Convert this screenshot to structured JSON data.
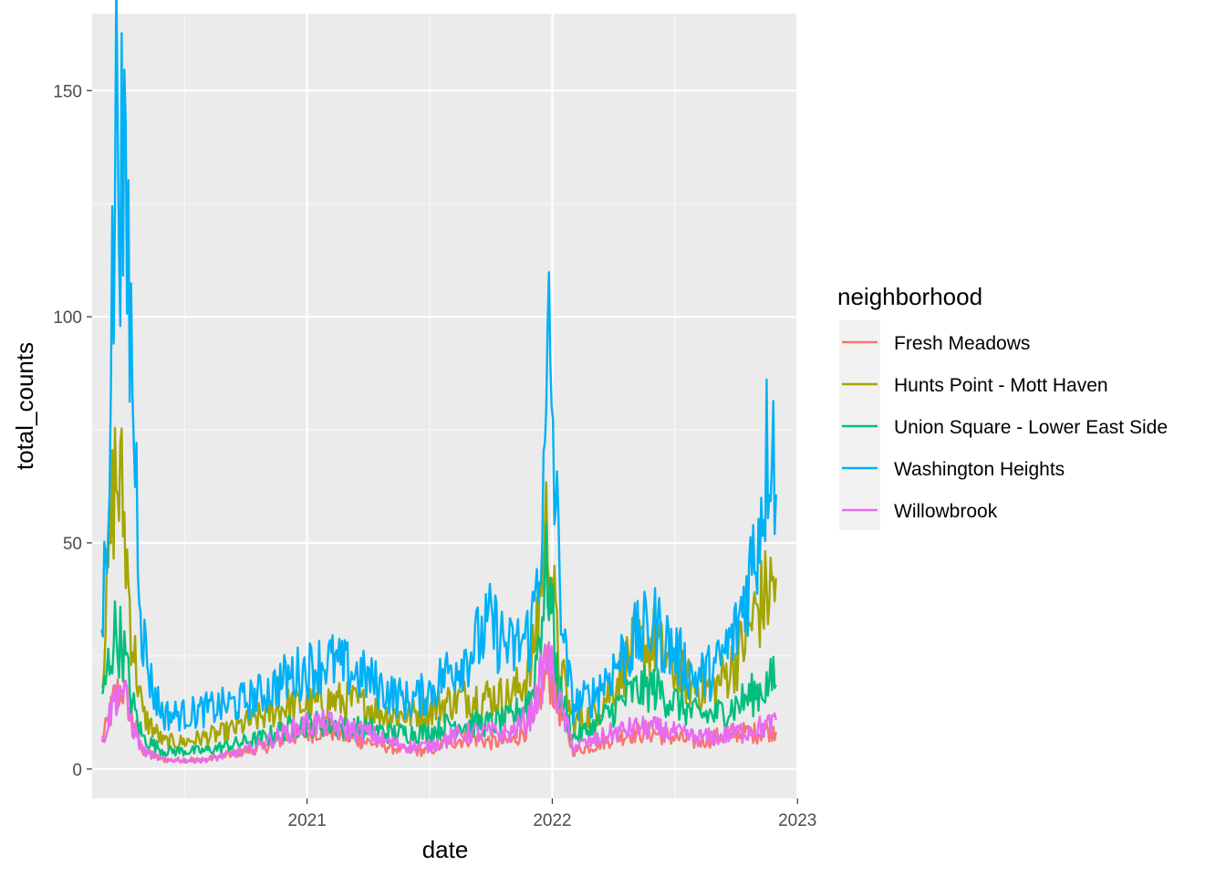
{
  "chart_data": {
    "type": "line",
    "xlabel": "date",
    "ylabel": "total_counts",
    "xlim": [
      "2020-02-16",
      "2023-01-02"
    ],
    "ylim": [
      -6.5,
      167
    ],
    "x_ticks": [
      "2021-01-01",
      "2022-01-01",
      "2023-01-01"
    ],
    "x_tick_labels": [
      "2021",
      "2022",
      "2023"
    ],
    "y_ticks": [
      0,
      50,
      100,
      150
    ],
    "y_tick_labels": [
      "0",
      "50",
      "100",
      "150"
    ],
    "grid": true,
    "legend": {
      "title": "neighborhood",
      "position": "right"
    },
    "series": [
      {
        "name": "Fresh Meadows",
        "color": "#F8766D",
        "points": [
          [
            "2020-03-01",
            6
          ],
          [
            "2020-03-10",
            10
          ],
          [
            "2020-03-20",
            16
          ],
          [
            "2020-04-01",
            18
          ],
          [
            "2020-04-15",
            12
          ],
          [
            "2020-05-01",
            4
          ],
          [
            "2020-06-01",
            2
          ],
          [
            "2020-07-01",
            2
          ],
          [
            "2020-08-01",
            2
          ],
          [
            "2020-09-01",
            3
          ],
          [
            "2020-10-01",
            4
          ],
          [
            "2020-11-01",
            5
          ],
          [
            "2020-12-01",
            7
          ],
          [
            "2021-01-01",
            8
          ],
          [
            "2021-02-01",
            9
          ],
          [
            "2021-03-01",
            7
          ],
          [
            "2021-04-01",
            6
          ],
          [
            "2021-05-01",
            5
          ],
          [
            "2021-06-01",
            4
          ],
          [
            "2021-07-01",
            4
          ],
          [
            "2021-08-01",
            6
          ],
          [
            "2021-09-01",
            7
          ],
          [
            "2021-10-01",
            6
          ],
          [
            "2021-11-01",
            6
          ],
          [
            "2021-12-01",
            10
          ],
          [
            "2021-12-25",
            22
          ],
          [
            "2022-01-10",
            14
          ],
          [
            "2022-02-01",
            4
          ],
          [
            "2022-03-01",
            5
          ],
          [
            "2022-04-01",
            7
          ],
          [
            "2022-05-01",
            8
          ],
          [
            "2022-06-01",
            8
          ],
          [
            "2022-07-01",
            7
          ],
          [
            "2022-08-01",
            6
          ],
          [
            "2022-09-01",
            7
          ],
          [
            "2022-10-01",
            8
          ],
          [
            "2022-11-01",
            8
          ],
          [
            "2022-12-01",
            9
          ]
        ]
      },
      {
        "name": "Hunts Point - Mott Haven",
        "color": "#A3A500",
        "points": [
          [
            "2020-03-01",
            20
          ],
          [
            "2020-03-10",
            40
          ],
          [
            "2020-03-20",
            65
          ],
          [
            "2020-04-01",
            60
          ],
          [
            "2020-04-15",
            30
          ],
          [
            "2020-05-01",
            12
          ],
          [
            "2020-06-01",
            6
          ],
          [
            "2020-07-01",
            6
          ],
          [
            "2020-08-01",
            7
          ],
          [
            "2020-09-01",
            8
          ],
          [
            "2020-10-01",
            10
          ],
          [
            "2020-11-01",
            12
          ],
          [
            "2020-12-01",
            14
          ],
          [
            "2021-01-01",
            14
          ],
          [
            "2021-02-01",
            15
          ],
          [
            "2021-03-01",
            15
          ],
          [
            "2021-04-01",
            14
          ],
          [
            "2021-05-01",
            12
          ],
          [
            "2021-06-01",
            12
          ],
          [
            "2021-07-01",
            13
          ],
          [
            "2021-08-01",
            15
          ],
          [
            "2021-09-01",
            16
          ],
          [
            "2021-10-01",
            16
          ],
          [
            "2021-11-01",
            16
          ],
          [
            "2021-12-01",
            22
          ],
          [
            "2021-12-25",
            55
          ],
          [
            "2022-01-10",
            24
          ],
          [
            "2022-02-01",
            10
          ],
          [
            "2022-03-01",
            12
          ],
          [
            "2022-04-01",
            18
          ],
          [
            "2022-05-01",
            26
          ],
          [
            "2022-06-01",
            28
          ],
          [
            "2022-07-01",
            22
          ],
          [
            "2022-08-01",
            18
          ],
          [
            "2022-09-01",
            18
          ],
          [
            "2022-10-01",
            24
          ],
          [
            "2022-11-01",
            35
          ],
          [
            "2022-12-01",
            42
          ]
        ]
      },
      {
        "name": "Union Square - Lower East Side",
        "color": "#00BF7D",
        "points": [
          [
            "2020-03-01",
            14
          ],
          [
            "2020-03-10",
            22
          ],
          [
            "2020-03-20",
            30
          ],
          [
            "2020-04-01",
            28
          ],
          [
            "2020-04-15",
            15
          ],
          [
            "2020-05-01",
            7
          ],
          [
            "2020-06-01",
            4
          ],
          [
            "2020-07-01",
            4
          ],
          [
            "2020-08-01",
            4
          ],
          [
            "2020-09-01",
            5
          ],
          [
            "2020-10-01",
            6
          ],
          [
            "2020-11-01",
            7
          ],
          [
            "2020-12-01",
            9
          ],
          [
            "2021-01-01",
            10
          ],
          [
            "2021-02-01",
            10
          ],
          [
            "2021-03-01",
            9
          ],
          [
            "2021-04-01",
            9
          ],
          [
            "2021-05-01",
            8
          ],
          [
            "2021-06-01",
            8
          ],
          [
            "2021-07-01",
            8
          ],
          [
            "2021-08-01",
            10
          ],
          [
            "2021-09-01",
            10
          ],
          [
            "2021-10-01",
            10
          ],
          [
            "2021-11-01",
            11
          ],
          [
            "2021-12-01",
            16
          ],
          [
            "2021-12-25",
            45
          ],
          [
            "2022-01-10",
            18
          ],
          [
            "2022-02-01",
            7
          ],
          [
            "2022-03-01",
            9
          ],
          [
            "2022-04-01",
            13
          ],
          [
            "2022-05-01",
            17
          ],
          [
            "2022-06-01",
            18
          ],
          [
            "2022-07-01",
            15
          ],
          [
            "2022-08-01",
            12
          ],
          [
            "2022-09-01",
            12
          ],
          [
            "2022-10-01",
            14
          ],
          [
            "2022-11-01",
            17
          ],
          [
            "2022-12-01",
            20
          ]
        ]
      },
      {
        "name": "Washington Heights",
        "color": "#00B0F6",
        "points": [
          [
            "2020-03-01",
            28
          ],
          [
            "2020-03-10",
            60
          ],
          [
            "2020-03-20",
            120
          ],
          [
            "2020-03-25",
            159
          ],
          [
            "2020-04-01",
            125
          ],
          [
            "2020-04-10",
            110
          ],
          [
            "2020-04-20",
            70
          ],
          [
            "2020-05-01",
            30
          ],
          [
            "2020-05-15",
            18
          ],
          [
            "2020-06-01",
            12
          ],
          [
            "2020-07-01",
            12
          ],
          [
            "2020-08-01",
            13
          ],
          [
            "2020-09-01",
            14
          ],
          [
            "2020-10-01",
            15
          ],
          [
            "2020-11-01",
            17
          ],
          [
            "2020-12-01",
            20
          ],
          [
            "2021-01-01",
            22
          ],
          [
            "2021-02-01",
            24
          ],
          [
            "2021-03-01",
            22
          ],
          [
            "2021-04-01",
            20
          ],
          [
            "2021-05-01",
            17
          ],
          [
            "2021-06-01",
            15
          ],
          [
            "2021-07-01",
            17
          ],
          [
            "2021-08-01",
            22
          ],
          [
            "2021-09-01",
            26
          ],
          [
            "2021-10-01",
            32
          ],
          [
            "2021-11-01",
            26
          ],
          [
            "2021-12-01",
            30
          ],
          [
            "2021-12-20",
            60
          ],
          [
            "2021-12-28",
            96
          ],
          [
            "2022-01-05",
            60
          ],
          [
            "2022-01-20",
            25
          ],
          [
            "2022-02-01",
            14
          ],
          [
            "2022-03-01",
            16
          ],
          [
            "2022-04-01",
            22
          ],
          [
            "2022-05-01",
            28
          ],
          [
            "2022-06-01",
            32
          ],
          [
            "2022-07-01",
            26
          ],
          [
            "2022-08-01",
            20
          ],
          [
            "2022-09-01",
            22
          ],
          [
            "2022-10-01",
            30
          ],
          [
            "2022-11-01",
            50
          ],
          [
            "2022-11-25",
            81
          ],
          [
            "2022-12-01",
            55
          ]
        ]
      },
      {
        "name": "Willowbrook",
        "color": "#E76BF3",
        "points": [
          [
            "2020-03-01",
            6
          ],
          [
            "2020-03-10",
            10
          ],
          [
            "2020-03-20",
            16
          ],
          [
            "2020-04-01",
            18
          ],
          [
            "2020-04-15",
            10
          ],
          [
            "2020-05-01",
            4
          ],
          [
            "2020-06-01",
            2
          ],
          [
            "2020-07-01",
            2
          ],
          [
            "2020-08-01",
            2
          ],
          [
            "2020-09-01",
            3
          ],
          [
            "2020-10-01",
            4
          ],
          [
            "2020-11-01",
            6
          ],
          [
            "2020-12-01",
            8
          ],
          [
            "2021-01-01",
            10
          ],
          [
            "2021-02-01",
            10
          ],
          [
            "2021-03-01",
            9
          ],
          [
            "2021-04-01",
            8
          ],
          [
            "2021-05-01",
            6
          ],
          [
            "2021-06-01",
            5
          ],
          [
            "2021-07-01",
            5
          ],
          [
            "2021-08-01",
            7
          ],
          [
            "2021-09-01",
            8
          ],
          [
            "2021-10-01",
            8
          ],
          [
            "2021-11-01",
            8
          ],
          [
            "2021-12-01",
            12
          ],
          [
            "2021-12-25",
            25
          ],
          [
            "2022-01-10",
            15
          ],
          [
            "2022-02-01",
            5
          ],
          [
            "2022-03-01",
            6
          ],
          [
            "2022-04-01",
            8
          ],
          [
            "2022-05-01",
            9
          ],
          [
            "2022-06-01",
            9
          ],
          [
            "2022-07-01",
            8
          ],
          [
            "2022-08-01",
            7
          ],
          [
            "2022-09-01",
            7
          ],
          [
            "2022-10-01",
            8
          ],
          [
            "2022-11-01",
            9
          ],
          [
            "2022-12-01",
            10
          ]
        ]
      }
    ]
  }
}
